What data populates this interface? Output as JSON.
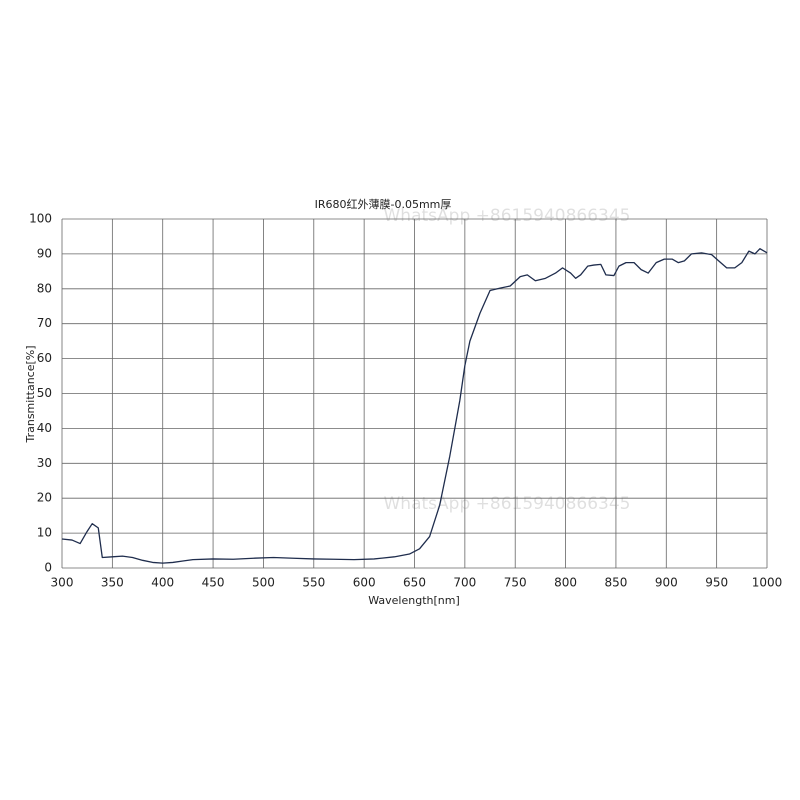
{
  "chart_data": {
    "type": "line",
    "title": "IR680红外薄膜-0.05mm厚",
    "x_label": "Wavelength[nm]",
    "y_label": "Transmittance[%]",
    "annotations": [
      "WhatsApp +8615940866345",
      "WhatsApp +8615940866345"
    ],
    "x": [
      300,
      310,
      318,
      325,
      330,
      336,
      340,
      350,
      360,
      370,
      380,
      390,
      400,
      410,
      420,
      430,
      450,
      470,
      490,
      510,
      530,
      550,
      570,
      590,
      610,
      630,
      645,
      655,
      665,
      675,
      685,
      695,
      700,
      705,
      715,
      725,
      735,
      745,
      755,
      762,
      770,
      780,
      790,
      797,
      805,
      810,
      815,
      822,
      828,
      835,
      840,
      848,
      853,
      860,
      868,
      875,
      882,
      890,
      898,
      906,
      912,
      918,
      925,
      935,
      945,
      952,
      960,
      968,
      975,
      982,
      988,
      993,
      1000
    ],
    "series": [
      {
        "name": "IR680",
        "color": "#1f2d4d",
        "values": [
          8.3,
          8,
          7,
          10.5,
          12.7,
          11.5,
          3,
          3.2,
          3.4,
          3,
          2.2,
          1.6,
          1.4,
          1.6,
          2,
          2.4,
          2.6,
          2.5,
          2.8,
          3,
          2.8,
          2.6,
          2.5,
          2.4,
          2.6,
          3.2,
          4,
          5.5,
          9,
          18,
          32,
          48,
          58,
          65,
          73,
          79.5,
          80.2,
          80.8,
          83.5,
          84,
          82.3,
          83,
          84.5,
          86,
          84.5,
          83,
          84,
          86.5,
          86.8,
          87,
          84,
          83.8,
          86.5,
          87.5,
          87.5,
          85.5,
          84.5,
          87.5,
          88.5,
          88.5,
          87.5,
          88,
          90,
          90.3,
          89.8,
          88,
          86,
          86,
          87.5,
          90.8,
          90,
          91.5,
          90.3
        ]
      }
    ],
    "xlim": [
      300,
      1000
    ],
    "xticks": [
      300,
      350,
      400,
      450,
      500,
      550,
      600,
      650,
      700,
      750,
      800,
      850,
      900,
      950,
      1000
    ],
    "ylim": [
      0,
      100
    ],
    "yticks": [
      0,
      10,
      20,
      30,
      40,
      50,
      60,
      70,
      80,
      90,
      100
    ],
    "grid": true
  }
}
